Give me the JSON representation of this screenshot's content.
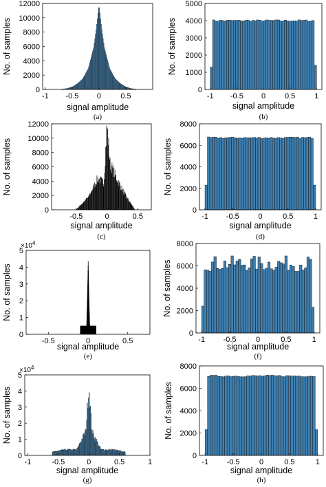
{
  "chart_data": [
    {
      "id": "a",
      "type": "bar",
      "caption": "(a)",
      "xlabel": "signal amplitude",
      "ylabel": "No. of samples",
      "xlim": [
        -1.05,
        1.0
      ],
      "ylim": [
        0,
        12000
      ],
      "xticks": [
        -1,
        -0.5,
        0,
        0.5
      ],
      "xtick_labels": [
        "-1",
        "-0.5",
        "0",
        "0.5"
      ],
      "yticks": [
        0,
        2000,
        4000,
        6000,
        8000,
        10000,
        12000
      ],
      "ytick_labels": [
        "0",
        "2000",
        "4000",
        "6000",
        "8000",
        "10000",
        "12000"
      ],
      "bar_color": "#3f7fb0",
      "shape": "laplacian",
      "x": [
        -0.7,
        -0.6,
        -0.5,
        -0.4,
        -0.3,
        -0.2,
        -0.1,
        -0.05,
        0,
        0.05,
        0.1,
        0.2,
        0.3,
        0.4,
        0.5,
        0.6,
        0.7
      ],
      "y": [
        40,
        120,
        350,
        800,
        1500,
        2900,
        5800,
        8500,
        11800,
        8500,
        5800,
        2900,
        1500,
        800,
        350,
        120,
        40
      ]
    },
    {
      "id": "b",
      "type": "bar",
      "caption": "(b)",
      "xlabel": "signal amplitude",
      "ylabel": "No. of samples",
      "xlim": [
        -1.1,
        1.1
      ],
      "ylim": [
        0,
        5000
      ],
      "xticks": [
        -1,
        -0.5,
        0,
        0.5,
        1
      ],
      "xtick_labels": [
        "-1",
        "-0.5",
        "0",
        "0.5",
        "1"
      ],
      "yticks": [
        0,
        1000,
        2000,
        3000,
        4000,
        5000
      ],
      "ytick_labels": [
        "0",
        "1000",
        "2000",
        "3000",
        "4000",
        "5000"
      ],
      "bar_color": "#3f7fb0",
      "shape": "uniform",
      "x": [
        -1,
        1
      ],
      "y": [
        4000,
        4000
      ],
      "edge_values": [
        1300,
        1400
      ]
    },
    {
      "id": "c",
      "type": "bar",
      "caption": "(c)",
      "xlabel": "signal amplitude",
      "ylabel": "No. of samples",
      "xlim": [
        -0.9,
        0.72
      ],
      "ylim": [
        0,
        12000
      ],
      "xticks": [
        -0.5,
        0,
        0.5
      ],
      "xtick_labels": [
        "-0.5",
        "0",
        "0.5"
      ],
      "yticks": [
        0,
        2000,
        4000,
        6000,
        8000,
        10000,
        12000
      ],
      "ytick_labels": [
        "0",
        "2000",
        "4000",
        "6000",
        "8000",
        "10000",
        "12000"
      ],
      "bar_color": "#000000",
      "shape": "speech",
      "x": [
        -0.5,
        -0.3,
        -0.15,
        -0.05,
        0,
        0.05,
        0.15,
        0.3,
        0.45
      ],
      "y": [
        50,
        1800,
        4400,
        3800,
        11800,
        6500,
        4500,
        2000,
        100
      ]
    },
    {
      "id": "d",
      "type": "bar",
      "caption": "(d)",
      "xlabel": "signal amplitude",
      "ylabel": "No. of samples",
      "xlim": [
        -1.1,
        1.1
      ],
      "ylim": [
        0,
        8000
      ],
      "xticks": [
        -1,
        -0.5,
        0,
        0.5,
        1
      ],
      "xtick_labels": [
        "-1",
        "-0.5",
        "0",
        "0.5",
        "1"
      ],
      "yticks": [
        0,
        2000,
        4000,
        6000,
        8000
      ],
      "ytick_labels": [
        "0",
        "2000",
        "4000",
        "6000",
        "8000"
      ],
      "bar_color": "#3f7fb0",
      "shape": "uniform",
      "x": [
        -1,
        1
      ],
      "y": [
        6700,
        6700
      ],
      "edge_values": [
        2300,
        2300
      ]
    },
    {
      "id": "e",
      "type": "bar",
      "caption": "(e)",
      "xlabel": "signal amplitude",
      "ylabel": "No. of samples",
      "xlim": [
        -0.78,
        0.78
      ],
      "ylim": [
        0,
        5
      ],
      "y_exponent": "×10",
      "y_exponent_power": "4",
      "xticks": [
        -0.5,
        0,
        0.5
      ],
      "xtick_labels": [
        "-0.5",
        "0",
        "0.5"
      ],
      "yticks": [
        0,
        1,
        2,
        3,
        4,
        5
      ],
      "ytick_labels": [
        "0",
        "1",
        "2",
        "3",
        "4",
        "5"
      ],
      "bar_color": "#000000",
      "shape": "spike",
      "x": [
        -0.02,
        -0.01,
        0,
        0.01,
        0.02
      ],
      "y": [
        0.5,
        2.2,
        4.5,
        2.2,
        0.5
      ]
    },
    {
      "id": "f",
      "type": "bar",
      "caption": "(f)",
      "xlabel": "signal amplitude",
      "ylabel": "No. of samples",
      "xlim": [
        -1.1,
        1.1
      ],
      "ylim": [
        0,
        8000
      ],
      "xticks": [
        -1,
        -0.5,
        0,
        0.5,
        1
      ],
      "xtick_labels": [
        "-1",
        "-0.5",
        "0",
        "0.5",
        "1"
      ],
      "yticks": [
        0,
        2000,
        4000,
        6000,
        8000
      ],
      "ytick_labels": [
        "0",
        "2000",
        "4000",
        "6000",
        "8000"
      ],
      "bar_color": "#3f7fb0",
      "shape": "uniform",
      "x": [
        -1,
        1
      ],
      "y": [
        6200,
        6200
      ],
      "edge_values": [
        2400,
        2300
      ]
    },
    {
      "id": "g",
      "type": "bar",
      "caption": "(g)",
      "xlabel": "signal amplitude",
      "ylabel": "No. of samples",
      "xlim": [
        -1.05,
        1.0
      ],
      "ylim": [
        0,
        5
      ],
      "y_exponent": "×10",
      "y_exponent_power": "4",
      "xticks": [
        -1,
        -0.5,
        0,
        0.5,
        1
      ],
      "xtick_labels": [
        "-1",
        "-0.5",
        "0",
        "0.5",
        "1"
      ],
      "yticks": [
        0,
        1,
        2,
        3,
        4,
        5
      ],
      "ytick_labels": [
        "0",
        "1",
        "2",
        "3",
        "4",
        "5"
      ],
      "bar_color": "#3f7fb0",
      "shape": "spike-shoulders",
      "x": [
        -0.6,
        -0.4,
        -0.2,
        -0.05,
        0,
        0.05,
        0.2,
        0.4,
        0.6
      ],
      "y": [
        0.2,
        0.35,
        0.35,
        1.5,
        4.3,
        1.5,
        0.35,
        0.35,
        0.2
      ]
    },
    {
      "id": "h",
      "type": "bar",
      "caption": "(h)",
      "xlabel": "signal amplitude",
      "ylabel": "No. of samples",
      "xlim": [
        -1.1,
        1.1
      ],
      "ylim": [
        0,
        8000
      ],
      "xticks": [
        -1,
        -0.5,
        0,
        0.5,
        1
      ],
      "xtick_labels": [
        "-1",
        "-0.5",
        "0",
        "0.5",
        "1"
      ],
      "yticks": [
        0,
        2000,
        4000,
        6000,
        8000
      ],
      "ytick_labels": [
        "0",
        "2000",
        "4000",
        "6000",
        "8000"
      ],
      "bar_color": "#3f7fb0",
      "shape": "uniform",
      "x": [
        -1,
        1
      ],
      "y": [
        7100,
        7100
      ],
      "edge_values": [
        2300,
        2300
      ]
    }
  ]
}
